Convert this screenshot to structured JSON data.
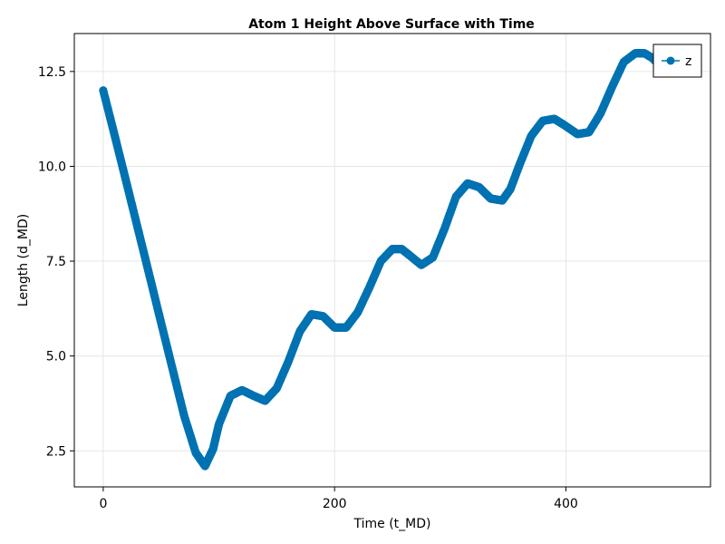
{
  "chart_data": {
    "type": "scatter",
    "title": "Atom 1 Height Above Surface with Time",
    "xlabel": "Time (t_MD)",
    "ylabel": "Length (d_MD)",
    "xlim": [
      -25,
      525
    ],
    "ylim": [
      1.55,
      13.5
    ],
    "xticks": [
      0,
      200,
      400
    ],
    "xtick_labels": [
      "0",
      "200",
      "400"
    ],
    "yticks": [
      2.5,
      5.0,
      7.5,
      10.0,
      12.5
    ],
    "ytick_labels": [
      "2.5",
      "5.0",
      "7.5",
      "10.0",
      "12.5"
    ],
    "grid": true,
    "legend_position": "top-right",
    "series": [
      {
        "name": "z",
        "color": "#0072b2",
        "marker": "circle",
        "x": [
          0,
          10,
          20,
          30,
          40,
          50,
          60,
          70,
          80,
          88,
          95,
          100,
          110,
          120,
          130,
          140,
          150,
          160,
          170,
          180,
          190,
          200,
          210,
          220,
          230,
          240,
          250,
          258,
          265,
          275,
          285,
          295,
          305,
          315,
          325,
          335,
          345,
          352,
          360,
          370,
          380,
          390,
          398,
          410,
          420,
          430,
          440,
          450,
          460,
          468,
          475,
          483,
          492
        ],
        "y": [
          12.0,
          10.8,
          9.58,
          8.35,
          7.12,
          5.88,
          4.65,
          3.42,
          2.45,
          2.1,
          2.55,
          3.2,
          3.95,
          4.1,
          3.95,
          3.82,
          4.15,
          4.85,
          5.65,
          6.1,
          6.05,
          5.75,
          5.75,
          6.15,
          6.8,
          7.5,
          7.82,
          7.82,
          7.65,
          7.4,
          7.6,
          8.35,
          9.2,
          9.55,
          9.45,
          9.15,
          9.1,
          9.4,
          10.05,
          10.8,
          11.2,
          11.25,
          11.1,
          10.85,
          10.9,
          11.4,
          12.1,
          12.75,
          12.98,
          12.98,
          12.85,
          12.6,
          12.5
        ]
      }
    ]
  }
}
